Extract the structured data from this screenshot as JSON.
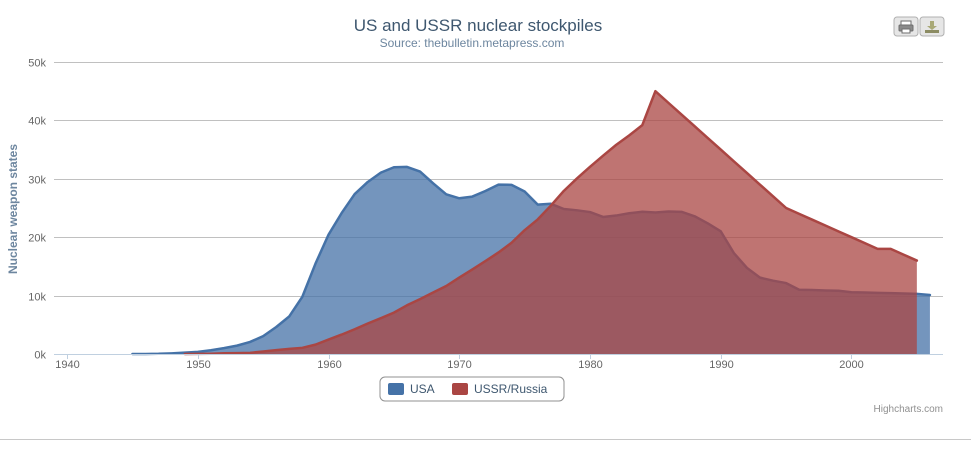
{
  "chart_data": {
    "type": "area",
    "title": "US and USSR nuclear stockpiles",
    "subtitle": "Source: thebulletin.metapress.com",
    "xlabel": "",
    "ylabel": "Nuclear weapon states",
    "xlim": [
      1939,
      2007
    ],
    "ylim": [
      0,
      50000
    ],
    "x_ticks": [
      1940,
      1950,
      1960,
      1970,
      1980,
      1990,
      2000
    ],
    "y_ticks": [
      0,
      10000,
      20000,
      30000,
      40000,
      50000
    ],
    "y_tick_labels": [
      "0k",
      "10k",
      "20k",
      "30k",
      "40k",
      "50k"
    ],
    "grid": "horizontal",
    "legend_position": "bottom-center",
    "credits": "Highcharts.com",
    "series": [
      {
        "name": "USA",
        "color": "#4572A7",
        "points": [
          [
            1945,
            6
          ],
          [
            1946,
            11
          ],
          [
            1947,
            32
          ],
          [
            1948,
            110
          ],
          [
            1949,
            235
          ],
          [
            1950,
            369
          ],
          [
            1951,
            640
          ],
          [
            1952,
            1005
          ],
          [
            1953,
            1436
          ],
          [
            1954,
            2063
          ],
          [
            1955,
            3057
          ],
          [
            1956,
            4618
          ],
          [
            1957,
            6444
          ],
          [
            1958,
            9822
          ],
          [
            1959,
            15468
          ],
          [
            1960,
            20434
          ],
          [
            1961,
            24126
          ],
          [
            1962,
            27387
          ],
          [
            1963,
            29459
          ],
          [
            1964,
            31056
          ],
          [
            1965,
            31982
          ],
          [
            1966,
            32040
          ],
          [
            1967,
            31233
          ],
          [
            1968,
            29224
          ],
          [
            1969,
            27342
          ],
          [
            1970,
            26662
          ],
          [
            1971,
            26956
          ],
          [
            1972,
            27912
          ],
          [
            1973,
            28999
          ],
          [
            1974,
            28965
          ],
          [
            1975,
            27826
          ],
          [
            1976,
            25579
          ],
          [
            1977,
            25722
          ],
          [
            1978,
            24826
          ],
          [
            1979,
            24605
          ],
          [
            1980,
            24304
          ],
          [
            1981,
            23464
          ],
          [
            1982,
            23708
          ],
          [
            1983,
            24099
          ],
          [
            1984,
            24357
          ],
          [
            1985,
            24237
          ],
          [
            1986,
            24401
          ],
          [
            1987,
            24344
          ],
          [
            1988,
            23586
          ],
          [
            1989,
            22380
          ],
          [
            1990,
            21004
          ],
          [
            1991,
            17287
          ],
          [
            1992,
            14747
          ],
          [
            1993,
            13076
          ],
          [
            1994,
            12555
          ],
          [
            1995,
            12144
          ],
          [
            1996,
            11009
          ],
          [
            1997,
            10950
          ],
          [
            1998,
            10871
          ],
          [
            1999,
            10824
          ],
          [
            2000,
            10577
          ],
          [
            2001,
            10527
          ],
          [
            2002,
            10475
          ],
          [
            2003,
            10421
          ],
          [
            2004,
            10358
          ],
          [
            2005,
            10295
          ],
          [
            2006,
            10104
          ]
        ]
      },
      {
        "name": "USSR/Russia",
        "color": "#AA4643",
        "points": [
          [
            1949,
            5
          ],
          [
            1950,
            25
          ],
          [
            1951,
            50
          ],
          [
            1952,
            120
          ],
          [
            1953,
            150
          ],
          [
            1954,
            200
          ],
          [
            1955,
            426
          ],
          [
            1956,
            660
          ],
          [
            1957,
            869
          ],
          [
            1958,
            1060
          ],
          [
            1959,
            1605
          ],
          [
            1960,
            2471
          ],
          [
            1961,
            3322
          ],
          [
            1962,
            4238
          ],
          [
            1963,
            5221
          ],
          [
            1964,
            6129
          ],
          [
            1965,
            7089
          ],
          [
            1966,
            8339
          ],
          [
            1967,
            9399
          ],
          [
            1968,
            10538
          ],
          [
            1969,
            11643
          ],
          [
            1970,
            13092
          ],
          [
            1971,
            14478
          ],
          [
            1972,
            15915
          ],
          [
            1973,
            17385
          ],
          [
            1974,
            19055
          ],
          [
            1975,
            21205
          ],
          [
            1976,
            23044
          ],
          [
            1977,
            25393
          ],
          [
            1978,
            27935
          ],
          [
            1979,
            30062
          ],
          [
            1980,
            32049
          ],
          [
            1981,
            33952
          ],
          [
            1982,
            35804
          ],
          [
            1983,
            37431
          ],
          [
            1984,
            39197
          ],
          [
            1985,
            45000
          ],
          [
            1986,
            43000
          ],
          [
            1987,
            41000
          ],
          [
            1988,
            39000
          ],
          [
            1989,
            37000
          ],
          [
            1990,
            35000
          ],
          [
            1991,
            33000
          ],
          [
            1992,
            31000
          ],
          [
            1993,
            29000
          ],
          [
            1994,
            27000
          ],
          [
            1995,
            25000
          ],
          [
            1996,
            24000
          ],
          [
            1997,
            23000
          ],
          [
            1998,
            22000
          ],
          [
            1999,
            21000
          ],
          [
            2000,
            20000
          ],
          [
            2001,
            19000
          ],
          [
            2002,
            18000
          ],
          [
            2003,
            18000
          ],
          [
            2004,
            17000
          ],
          [
            2005,
            16000
          ]
        ]
      }
    ]
  },
  "toolbar": {
    "print_icon": "printer-icon",
    "export_icon": "download-icon"
  }
}
